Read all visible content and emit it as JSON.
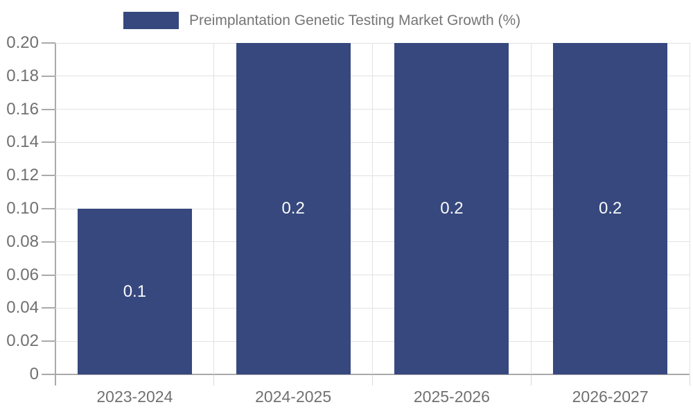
{
  "legend": {
    "label": "Preimplantation Genetic Testing Market Growth (%)"
  },
  "chart_data": {
    "type": "bar",
    "title": "Preimplantation Genetic Testing Market Growth (%)",
    "categories": [
      "2023-2024",
      "2024-2025",
      "2025-2026",
      "2026-2027"
    ],
    "values": [
      0.1,
      0.2,
      0.2,
      0.2
    ],
    "bar_value_labels": [
      "0.1",
      "0.2",
      "0.2",
      "0.2"
    ],
    "xlabel": "",
    "ylabel": "",
    "ylim": [
      0,
      0.2
    ],
    "yticks": [
      0,
      0.02,
      0.04,
      0.06,
      0.08,
      0.1,
      0.12,
      0.14,
      0.16,
      0.18,
      0.2
    ],
    "ytick_labels": [
      "0",
      "0.02",
      "0.04",
      "0.06",
      "0.08",
      "0.10",
      "0.12",
      "0.14",
      "0.16",
      "0.18",
      "0.20"
    ],
    "grid": true,
    "legend_position": "top",
    "colors": {
      "bar": "#36487E",
      "bar_label": "#FAFAFA",
      "grid_line": "#E2E2E2",
      "axis_line": "#A9A9A9",
      "boundary_tick": "#D9D9D9",
      "tick_label": "#707070",
      "legend_text": "#757575",
      "background": "#FFFFFF"
    }
  }
}
